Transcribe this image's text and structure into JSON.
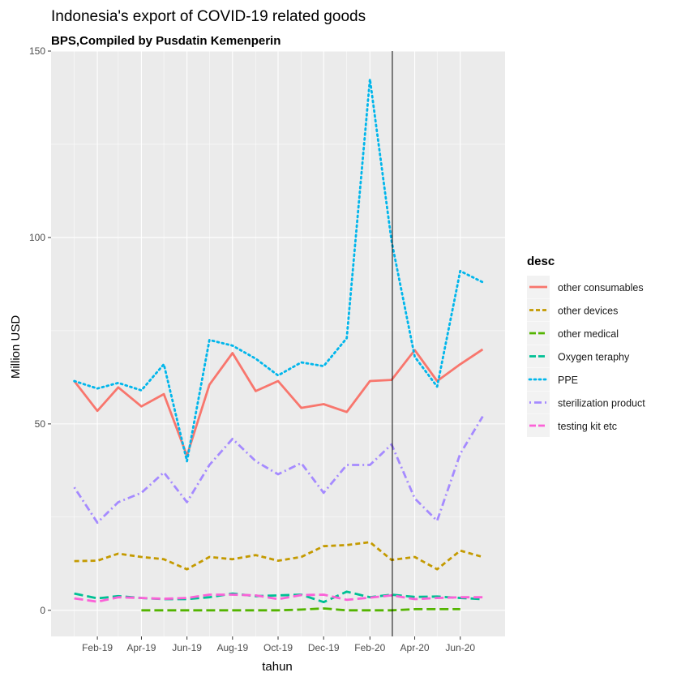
{
  "chart_data": {
    "type": "line",
    "title": "Indonesia's export of COVID-19 related goods",
    "subtitle": "BPS,Compiled by Pusdatin Kemenperin",
    "xlabel": "tahun",
    "ylabel": "Million USD",
    "x_tick_labels": [
      "Feb-19",
      "Apr-19",
      "Jun-19",
      "Aug-19",
      "Oct-19",
      "Dec-19",
      "Feb-20",
      "Apr-20",
      "Jun-20"
    ],
    "y_tick_labels": [
      "0",
      "50",
      "100",
      "150"
    ],
    "ylim": [
      -7,
      150
    ],
    "xlim": [
      "2018-12-01",
      "2020-07-31"
    ],
    "grid": true,
    "legend_title": "desc",
    "legend_position": "right",
    "vline": "2020-03-02",
    "x": [
      "2019-01-01",
      "2019-02-01",
      "2019-03-01",
      "2019-04-01",
      "2019-05-01",
      "2019-06-01",
      "2019-07-01",
      "2019-08-01",
      "2019-09-01",
      "2019-10-01",
      "2019-11-01",
      "2019-12-01",
      "2020-01-01",
      "2020-02-01",
      "2020-03-01",
      "2020-04-01",
      "2020-05-01",
      "2020-06-01",
      "2020-07-01"
    ],
    "series": [
      {
        "name": "other consumables",
        "color": "#F8766D",
        "dash": "solid",
        "values": [
          61.5,
          53.5,
          59.8,
          54.7,
          58,
          41.5,
          60.5,
          69,
          58.8,
          61.5,
          54.3,
          55.3,
          53.2,
          61.5,
          61.8,
          69.8,
          61.5,
          66,
          70
        ]
      },
      {
        "name": "other devices",
        "color": "#C49A00",
        "dash": "dashed",
        "values": [
          13.2,
          13.3,
          15.2,
          14.3,
          13.7,
          11,
          14.3,
          13.7,
          14.8,
          13.3,
          14.3,
          17.2,
          17.5,
          18.3,
          13.5,
          14.3,
          11,
          16,
          14.3
        ]
      },
      {
        "name": "other medical",
        "color": "#53B400",
        "dash": "longdash",
        "values": [
          null,
          null,
          null,
          0,
          0,
          0,
          0,
          0,
          0,
          0,
          0.2,
          0.5,
          0,
          0,
          0,
          0.3,
          0.3,
          0.3,
          null
        ]
      },
      {
        "name": "Oxygen teraphy",
        "color": "#00C094",
        "dash": "longdash",
        "values": [
          4.5,
          3.2,
          3.8,
          3.3,
          3,
          3,
          3.5,
          4.5,
          3.8,
          4,
          4.2,
          2.2,
          5,
          3.5,
          4.2,
          3.6,
          3.7,
          3.3,
          3
        ]
      },
      {
        "name": "PPE",
        "color": "#00B6EB",
        "dash": "dotted",
        "values": [
          61.5,
          59.5,
          61,
          59,
          66,
          40,
          72.5,
          71,
          67.5,
          63,
          66.5,
          65.5,
          73,
          142.5,
          99,
          68,
          60,
          91,
          88
        ]
      },
      {
        "name": "sterilization product",
        "color": "#A58AFF",
        "dash": "dotdash",
        "values": [
          33,
          23.5,
          29,
          31.5,
          37,
          29,
          39,
          46,
          40,
          36.5,
          39.5,
          31.5,
          39,
          39,
          44.5,
          30,
          24,
          42,
          52
        ]
      },
      {
        "name": "testing kit etc",
        "color": "#FB61D7",
        "dash": "longdash",
        "values": [
          3.2,
          2.3,
          3.5,
          3.3,
          3.1,
          3.3,
          4.2,
          4.2,
          4,
          3,
          4.1,
          4.2,
          2.8,
          3.4,
          4,
          3,
          3.3,
          3.5,
          3.5
        ]
      }
    ]
  }
}
